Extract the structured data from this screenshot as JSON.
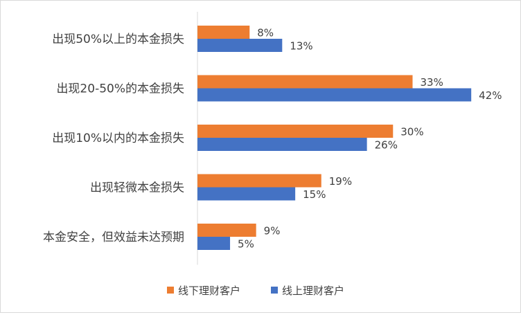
{
  "chart_data": {
    "type": "bar",
    "orientation": "horizontal",
    "categories": [
      "出现50%以上的本金损失",
      "出现20-50%的本金损失",
      "出现10%以内的本金损失",
      "出现轻微本金损失",
      "本金安全，但效益未达预期"
    ],
    "series": [
      {
        "name": "线下理财客户",
        "values": [
          8,
          33,
          30,
          19,
          9
        ],
        "labels": [
          "8%",
          "33%",
          "30%",
          "19%",
          "9%"
        ],
        "color": "#ED7D31"
      },
      {
        "name": "线上理财客户",
        "values": [
          13,
          42,
          26,
          15,
          5
        ],
        "labels": [
          "13%",
          "42%",
          "26%",
          "15%",
          "5%"
        ],
        "color": "#4472C4"
      }
    ],
    "xlim": [
      0,
      44
    ],
    "axis_color": "#d9d9d9",
    "grid": false,
    "legend_position": "bottom"
  }
}
